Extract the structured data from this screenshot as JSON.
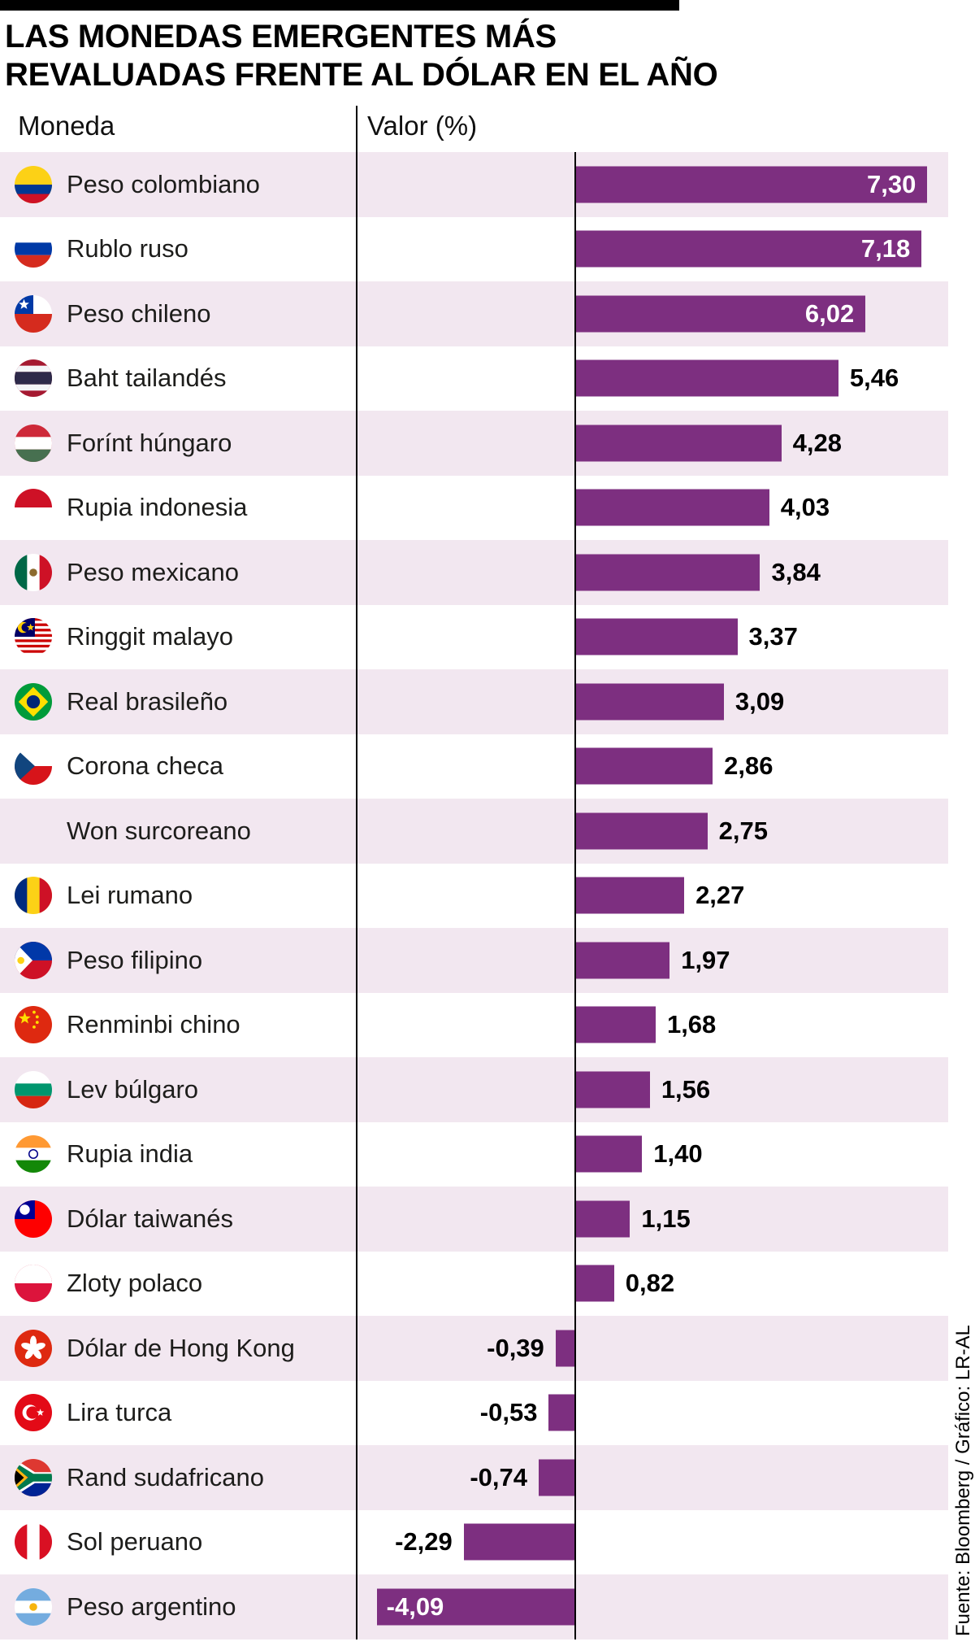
{
  "title": {
    "line1": "LAS MONEDAS EMERGENTES MÁS",
    "line2": "REVALUADAS FRENTE AL DÓLAR EN EL AÑO"
  },
  "columns": {
    "currency": "Moneda",
    "value": "Valor (%)"
  },
  "source": "Fuente: Bloomberg / Gráfico: LR-AL",
  "colors": {
    "bar": "#7d2f80",
    "row_alt_bg": "#f2e7f0",
    "line": "#000000",
    "value_inside_text": "#ffffff",
    "value_outside_text": "#000000"
  },
  "chart_data": {
    "type": "bar",
    "orientation": "horizontal",
    "title": "LAS MONEDAS EMERGENTES MÁS REVALUADAS FRENTE AL DÓLAR EN EL AÑO",
    "xlabel": "Valor (%)",
    "ylabel": "Moneda",
    "xlim": [
      -4.5,
      7.6
    ],
    "grid": false,
    "legend": false,
    "categories": [
      "Peso colombiano",
      "Rublo ruso",
      "Peso chileno",
      "Baht tailandés",
      "Forínt húngaro",
      "Rupia indonesia",
      "Peso mexicano",
      "Ringgit malayo",
      "Real brasileño",
      "Corona checa",
      "Won surcoreano",
      "Lei rumano",
      "Peso filipino",
      "Renminbi chino",
      "Lev búlgaro",
      "Rupia india",
      "Dólar taiwanés",
      "Zloty polaco",
      "Dólar de Hong Kong",
      "Lira turca",
      "Rand sudafricano",
      "Sol peruano",
      "Peso argentino"
    ],
    "values": [
      7.3,
      7.18,
      6.02,
      5.46,
      4.28,
      4.03,
      3.84,
      3.37,
      3.09,
      2.86,
      2.75,
      2.27,
      1.97,
      1.68,
      1.56,
      1.4,
      1.15,
      0.82,
      -0.39,
      -0.53,
      -0.74,
      -2.29,
      -4.09
    ],
    "value_labels": [
      "7,30",
      "7,18",
      "6,02",
      "5,46",
      "4,28",
      "4,03",
      "3,84",
      "3,37",
      "3,09",
      "2,86",
      "2,75",
      "2,27",
      "1,97",
      "1,68",
      "1,56",
      "1,40",
      "1,15",
      "0,82",
      "-0,39",
      "-0,53",
      "-0,74",
      "-2,29",
      "-4,09"
    ],
    "flags": [
      "colombia",
      "russia",
      "chile",
      "thailand",
      "hungary",
      "indonesia",
      "mexico",
      "malaysia",
      "brazil",
      "czechia",
      null,
      "romania",
      "philippines",
      "china",
      "bulgaria",
      "india",
      "taiwan",
      "poland",
      "hongkong",
      "turkey",
      "southafrica",
      "peru",
      "argentina"
    ]
  }
}
